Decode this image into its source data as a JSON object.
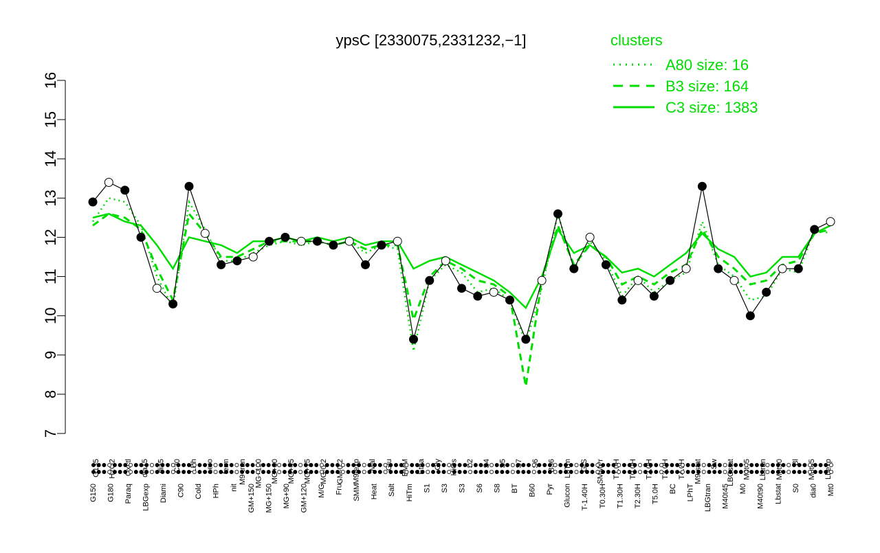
{
  "chart_data": {
    "type": "line",
    "title": "ypsC [2330075,2331232,−1]",
    "xlabel": "",
    "ylabel": "",
    "ylim": [
      7,
      16
    ],
    "yticks": [
      7,
      8,
      9,
      10,
      11,
      12,
      13,
      14,
      15,
      16
    ],
    "grid": false,
    "legend": {
      "title": "clusters",
      "position": "top-right",
      "color": "#00dd00",
      "entries": [
        {
          "label": "A80 size: 16",
          "style": "dotted"
        },
        {
          "label": "B3 size: 164",
          "style": "dashed"
        },
        {
          "label": "C3 size: 1383",
          "style": "solid"
        }
      ]
    },
    "x_tick_labels_upper": [
      "G135",
      "H2O2",
      "Oxctl",
      "dia15",
      "dia5",
      "C30",
      "LPh",
      "aero",
      "ferm",
      "M9-tran",
      "MG+120",
      "MG+60",
      "MG+45",
      "MG+15",
      "MG-0.2",
      "GM-0.2",
      "M9-exp",
      "Mal",
      "Glu",
      "BMM",
      "Etha",
      "Gly",
      "HiOs",
      "S2",
      "S4",
      "S5",
      "S7",
      "S6",
      "B36",
      "LoTm",
      "G/S",
      "SMMPr",
      "T1.0H",
      "T0.0H",
      "T2.0H",
      "T3.0H",
      "T4.0H",
      "M9-stat",
      "Sw",
      "LBGstat",
      "M0t45",
      "Lbtran",
      "M0t90",
      "Bl",
      "M0t45",
      "Lbexp"
    ],
    "x_tick_labels_lower": [
      "G150",
      "G180",
      "Paraq",
      "LBGexp",
      "Diami",
      "C90",
      "Cold",
      "HPh",
      "nit",
      "GM+150",
      "MG+150",
      "MG+90",
      "GM+120",
      "M/G",
      "Fru",
      "SMM",
      "Heat",
      "Salt",
      "HiTm",
      "S1",
      "S3",
      "S3",
      "S6",
      "S8",
      "BT",
      "B60",
      "Pyr",
      "Glucon",
      "T-1.40H",
      "T0.30H",
      "T1.30H",
      "T2.30H",
      "T5.0H",
      "BC",
      "LPhT",
      "LBGtran",
      "M40t45",
      "M0",
      "M40t90",
      "Lbstat",
      "S0",
      "dia0",
      "Mt0"
    ],
    "series": [
      {
        "name": "",
        "color": "#00dd00",
        "style": "dotted",
        "values": [
          12.4,
          13.0,
          12.9,
          12.3,
          11.0,
          10.2,
          12.9,
          12.2,
          11.4,
          11.4,
          11.6,
          11.8,
          11.9,
          11.8,
          11.9,
          11.8,
          11.9,
          11.6,
          11.8,
          11.7,
          9.1,
          10.9,
          11.3,
          11.1,
          10.6,
          10.7,
          10.4,
          9.3,
          10.7,
          12.6,
          11.2,
          11.9,
          11.4,
          10.5,
          11.0,
          10.6,
          10.9,
          11.1,
          12.4,
          11.3,
          11.0,
          10.4,
          10.5,
          11.2,
          11.1,
          12.2,
          12.1
        ]
      },
      {
        "name": "",
        "color": "#00dd00",
        "style": "dashed",
        "values": [
          12.3,
          12.6,
          12.5,
          12.2,
          11.2,
          10.4,
          12.6,
          12.1,
          11.5,
          11.5,
          11.7,
          11.9,
          11.9,
          11.9,
          11.9,
          11.8,
          11.9,
          11.7,
          11.8,
          11.8,
          9.9,
          11.0,
          11.4,
          11.2,
          10.9,
          10.8,
          10.5,
          8.2,
          10.9,
          12.3,
          11.3,
          11.8,
          11.5,
          10.8,
          11.0,
          10.8,
          11.1,
          11.3,
          12.2,
          11.5,
          11.2,
          10.8,
          10.9,
          11.3,
          11.4,
          12.1,
          12.2
        ]
      },
      {
        "name": "",
        "color": "#00dd00",
        "style": "solid",
        "values": [
          12.5,
          12.6,
          12.4,
          12.3,
          11.8,
          11.2,
          12.0,
          11.9,
          11.8,
          11.6,
          11.9,
          11.9,
          12.0,
          11.9,
          12.0,
          11.9,
          12.0,
          11.8,
          11.9,
          11.9,
          11.2,
          11.4,
          11.5,
          11.3,
          11.1,
          10.9,
          10.6,
          10.2,
          11.0,
          12.2,
          11.6,
          11.8,
          11.5,
          11.1,
          11.2,
          11.0,
          11.3,
          11.6,
          12.1,
          11.7,
          11.5,
          11.0,
          11.1,
          11.5,
          11.5,
          12.1,
          12.3
        ]
      },
      {
        "name": "",
        "color": "#000000",
        "style": "solid-with-points",
        "values": [
          12.9,
          13.4,
          13.2,
          12.0,
          10.7,
          10.3,
          13.3,
          12.1,
          11.3,
          11.4,
          11.5,
          11.9,
          12.0,
          11.9,
          11.9,
          11.8,
          11.9,
          11.3,
          11.8,
          11.9,
          9.4,
          10.9,
          11.4,
          10.7,
          10.5,
          10.6,
          10.4,
          9.4,
          10.9,
          12.6,
          11.2,
          12.0,
          11.3,
          10.4,
          10.9,
          10.5,
          10.9,
          11.2,
          13.3,
          11.2,
          10.9,
          10.0,
          10.6,
          11.2,
          11.2,
          12.2,
          12.4
        ]
      }
    ]
  }
}
